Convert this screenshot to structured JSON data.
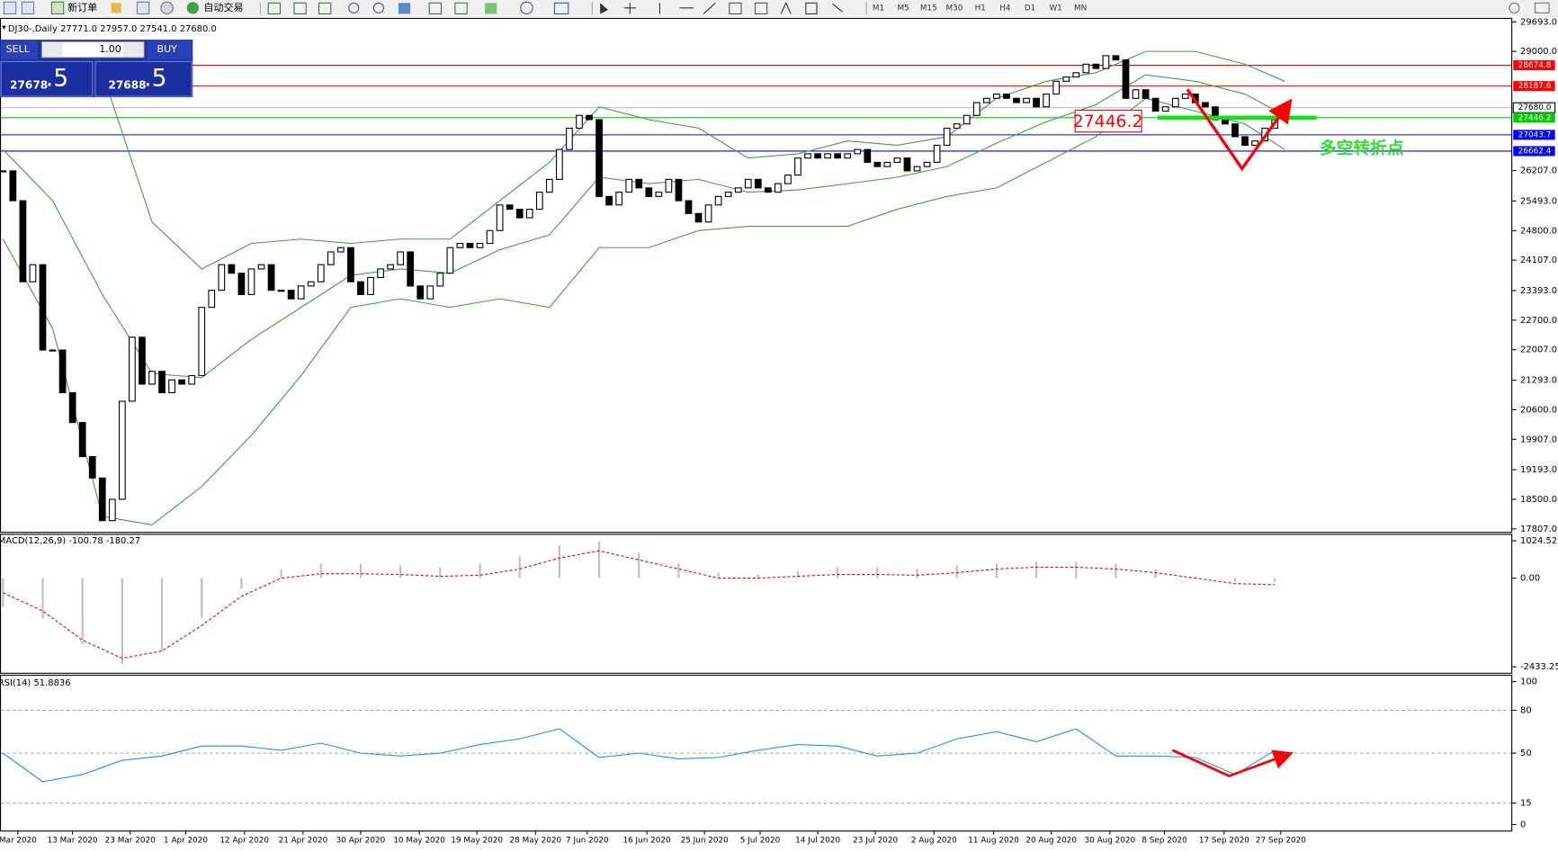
{
  "toolbar": {
    "new_order": "新订单",
    "auto_trading": "自动交易",
    "timeframes": [
      "M1",
      "M5",
      "M15",
      "M30",
      "H1",
      "H4",
      "D1",
      "W1",
      "MN"
    ]
  },
  "trade_panel": {
    "sell": "SELL",
    "buy": "BUY",
    "volume": "1.00",
    "sell_main": "27678",
    "sell_frac": ".5",
    "buy_main": "27688",
    "buy_frac": ".5"
  },
  "chart_data": [
    {
      "type": "candlestick",
      "title": "DJ30-,Daily  27771.0 27957.0 27541.0 27680.0",
      "closes": [
        26200,
        25500,
        23600,
        24000,
        22000,
        22000,
        21000,
        20300,
        19500,
        19000,
        18000,
        18500,
        20800,
        22300,
        21200,
        21500,
        21000,
        21300,
        21200,
        21400,
        23000,
        23400,
        24000,
        23800,
        23300,
        23900,
        24000,
        23400,
        23400,
        23200,
        23500,
        23600,
        24000,
        24300,
        24400,
        23600,
        23300,
        23700,
        23900,
        24000,
        24300,
        23500,
        23200,
        23500,
        23800,
        24400,
        24500,
        24400,
        24500,
        24800,
        25400,
        25300,
        25100,
        25300,
        25700,
        26000,
        26700,
        27200,
        27500,
        27400,
        25600,
        25400,
        25700,
        26000,
        25800,
        25600,
        25700,
        26000,
        25500,
        25200,
        25000,
        25400,
        25600,
        25700,
        25800,
        26000,
        25800,
        25700,
        25900,
        26100,
        26500,
        26600,
        26500,
        26600,
        26500,
        26600,
        26700,
        26400,
        26300,
        26400,
        26500,
        26200,
        26300,
        26400,
        26800,
        27200,
        27300,
        27500,
        27800,
        27900,
        28000,
        27900,
        27800,
        27900,
        27700,
        28000,
        28300,
        28400,
        28500,
        28700,
        28600,
        28900,
        28800,
        27900,
        28100,
        27900,
        27600,
        27700,
        27900,
        28000,
        27800,
        27700,
        27400,
        27300,
        27000,
        26800,
        26900,
        27200,
        27400,
        27680
      ],
      "bands": [
        {
          "color": "#3aa53a",
          "x": [
            0,
            5,
            10,
            15,
            20,
            25,
            30,
            35,
            40,
            45,
            50,
            55,
            60,
            65,
            70,
            75,
            80,
            85,
            90,
            95,
            100,
            105,
            110,
            115,
            120,
            125,
            129
          ],
          "values": [
            28800,
            28500,
            28500,
            25000,
            23900,
            24500,
            24600,
            24500,
            24600,
            24600,
            25500,
            26400,
            27700,
            27400,
            27200,
            26500,
            26600,
            26900,
            26800,
            27000,
            27900,
            28300,
            28500,
            29000,
            29000,
            28700,
            28300
          ]
        },
        {
          "color": "#3aa53a",
          "x": [
            0,
            5,
            10,
            15,
            20,
            25,
            30,
            35,
            40,
            45,
            50,
            55,
            60,
            65,
            70,
            75,
            80,
            85,
            90,
            95,
            100,
            105,
            110,
            115,
            120,
            125,
            129
          ],
          "values": [
            26700,
            25500,
            23300,
            21450,
            21350,
            22250,
            23000,
            23750,
            23900,
            23800,
            24350,
            24700,
            26050,
            25900,
            26000,
            25700,
            25750,
            25900,
            26050,
            26300,
            26850,
            27350,
            27750,
            28450,
            28300,
            28000,
            27500
          ]
        },
        {
          "color": "#3aa53a",
          "x": [
            0,
            5,
            10,
            15,
            20,
            25,
            30,
            35,
            40,
            45,
            50,
            55,
            60,
            65,
            70,
            75,
            80,
            85,
            90,
            95,
            100,
            105,
            110,
            115,
            120,
            125,
            129
          ],
          "values": [
            24600,
            22500,
            18100,
            17900,
            18800,
            20000,
            21400,
            23000,
            23200,
            23000,
            23200,
            23000,
            24400,
            24400,
            24800,
            24900,
            24900,
            24900,
            25300,
            25600,
            25800,
            26400,
            27000,
            27900,
            27600,
            27300,
            26700
          ]
        }
      ],
      "hlines": [
        {
          "value": 28674.8,
          "color": "#ff0000"
        },
        {
          "value": 28187.6,
          "color": "#ff0000"
        },
        {
          "value": 27680,
          "label": "27680.0",
          "color": "#c0c0c0"
        },
        {
          "value": 27446.2,
          "color": "#00cc00"
        },
        {
          "value": 27043.7,
          "color": "#0000ff"
        },
        {
          "value": 26662.4,
          "color": "#0000ff"
        }
      ],
      "annotation": "多空转折点",
      "ylim": [
        17807,
        29693
      ],
      "yticks": [
        {
          "value": 29693,
          "label": "29693.0"
        },
        {
          "value": 29000,
          "label": "29000.0"
        },
        {
          "value": 26207,
          "label": "26207.0"
        },
        {
          "value": 25493,
          "label": "25493.0"
        },
        {
          "value": 24800,
          "label": "24800.0"
        },
        {
          "value": 24107,
          "label": "24107.0"
        },
        {
          "value": 23393,
          "label": "23393.0"
        },
        {
          "value": 22700,
          "label": "22700.0"
        },
        {
          "value": 22007,
          "label": "22007.0"
        },
        {
          "value": 21293,
          "label": "21293.0"
        },
        {
          "value": 20600,
          "label": "20600.0"
        },
        {
          "value": 19907,
          "label": "19907.0"
        },
        {
          "value": 19193,
          "label": "19193.0"
        },
        {
          "value": 18500,
          "label": "18500.0"
        },
        {
          "value": 17807,
          "label": "17807.0"
        }
      ],
      "xticks": [
        {
          "value": 1.5,
          "label": "Mar 2020"
        },
        {
          "value": 7,
          "label": "13 Mar 2020"
        },
        {
          "value": 12.8,
          "label": "23 Mar 2020"
        },
        {
          "value": 18.4,
          "label": "1 Apr 2020"
        },
        {
          "value": 24.3,
          "label": "12 Apr 2020"
        },
        {
          "value": 30.2,
          "label": "21 Apr 2020"
        },
        {
          "value": 36,
          "label": "30 Apr 2020"
        },
        {
          "value": 41.9,
          "label": "10 May 2020"
        },
        {
          "value": 47.7,
          "label": "19 May 2020"
        },
        {
          "value": 53.6,
          "label": "28 May 2020"
        },
        {
          "value": 58.8,
          "label": "7 Jun 2020"
        },
        {
          "value": 64.8,
          "label": "16 Jun 2020"
        },
        {
          "value": 70.6,
          "label": "25 Jun 2020"
        },
        {
          "value": 76.2,
          "label": "5 Jul 2020"
        },
        {
          "value": 82,
          "label": "14 Jul 2020"
        },
        {
          "value": 87.8,
          "label": "23 Jul 2020"
        },
        {
          "value": 93.7,
          "label": "2 Aug 2020"
        },
        {
          "value": 99.7,
          "label": "11 Aug 2020"
        },
        {
          "value": 105.5,
          "label": "20 Aug 2020"
        },
        {
          "value": 111.4,
          "label": "30 Aug 2020"
        },
        {
          "value": 116.9,
          "label": "8 Sep 2020"
        },
        {
          "value": 122.9,
          "label": "17 Sep 2020"
        },
        {
          "value": 128.6,
          "label": "27 Sep 2020"
        }
      ]
    },
    {
      "type": "macd",
      "title": "MACD(12,26,9) -100.78 -180.27",
      "series": [
        {
          "style": "histogram",
          "color": "#c0c0c0",
          "x": [
            0,
            4,
            8,
            12,
            16,
            20,
            24,
            28,
            32,
            36,
            40,
            44,
            48,
            52,
            56,
            60,
            64,
            68,
            72,
            76,
            80,
            84,
            88,
            92,
            96,
            100,
            104,
            108,
            112,
            116,
            120,
            124,
            128
          ],
          "values": [
            -800,
            -1100,
            -1800,
            -2350,
            -2000,
            -1100,
            -300,
            250,
            400,
            400,
            350,
            300,
            400,
            600,
            900,
            1000,
            700,
            400,
            150,
            100,
            200,
            300,
            300,
            250,
            350,
            400,
            450,
            450,
            400,
            250,
            50,
            -100,
            -100.78
          ]
        },
        {
          "style": "dashed",
          "color": "#ff0000",
          "x": [
            0,
            4,
            8,
            12,
            16,
            20,
            24,
            28,
            32,
            36,
            40,
            44,
            48,
            52,
            56,
            60,
            64,
            68,
            72,
            76,
            80,
            84,
            88,
            92,
            96,
            100,
            104,
            108,
            112,
            116,
            120,
            124,
            128
          ],
          "values": [
            -400,
            -900,
            -1700,
            -2200,
            -2000,
            -1300,
            -500,
            0,
            120,
            120,
            100,
            50,
            80,
            250,
            550,
            750,
            500,
            250,
            0,
            0,
            50,
            100,
            100,
            80,
            150,
            250,
            300,
            300,
            250,
            150,
            0,
            -150,
            -180.27
          ]
        }
      ],
      "ylim": [
        -2433.25,
        1024.52
      ],
      "yticks": [
        1024.52,
        {
          "value": 0,
          "label": "0.00"
        },
        -2433.25
      ]
    },
    {
      "type": "line",
      "title": "RSI(14) 51.8836",
      "series": [
        {
          "color": "#1e90ff",
          "x": [
            0,
            4,
            8,
            12,
            16,
            20,
            24,
            28,
            32,
            36,
            40,
            44,
            48,
            52,
            56,
            60,
            64,
            68,
            72,
            76,
            80,
            84,
            88,
            92,
            96,
            100,
            104,
            108,
            112,
            116,
            120,
            124,
            128
          ],
          "values": [
            50,
            30,
            35,
            45,
            48,
            55,
            55,
            52,
            57,
            50,
            48,
            50,
            56,
            60,
            67,
            47,
            50,
            46,
            47,
            52,
            56,
            55,
            48,
            50,
            60,
            65,
            58,
            67,
            48,
            48,
            47,
            35,
            51.8836
          ]
        }
      ],
      "ylim": [
        0,
        100
      ],
      "yticks": [
        100,
        80,
        50,
        15,
        0
      ],
      "grid": "dashed"
    }
  ]
}
